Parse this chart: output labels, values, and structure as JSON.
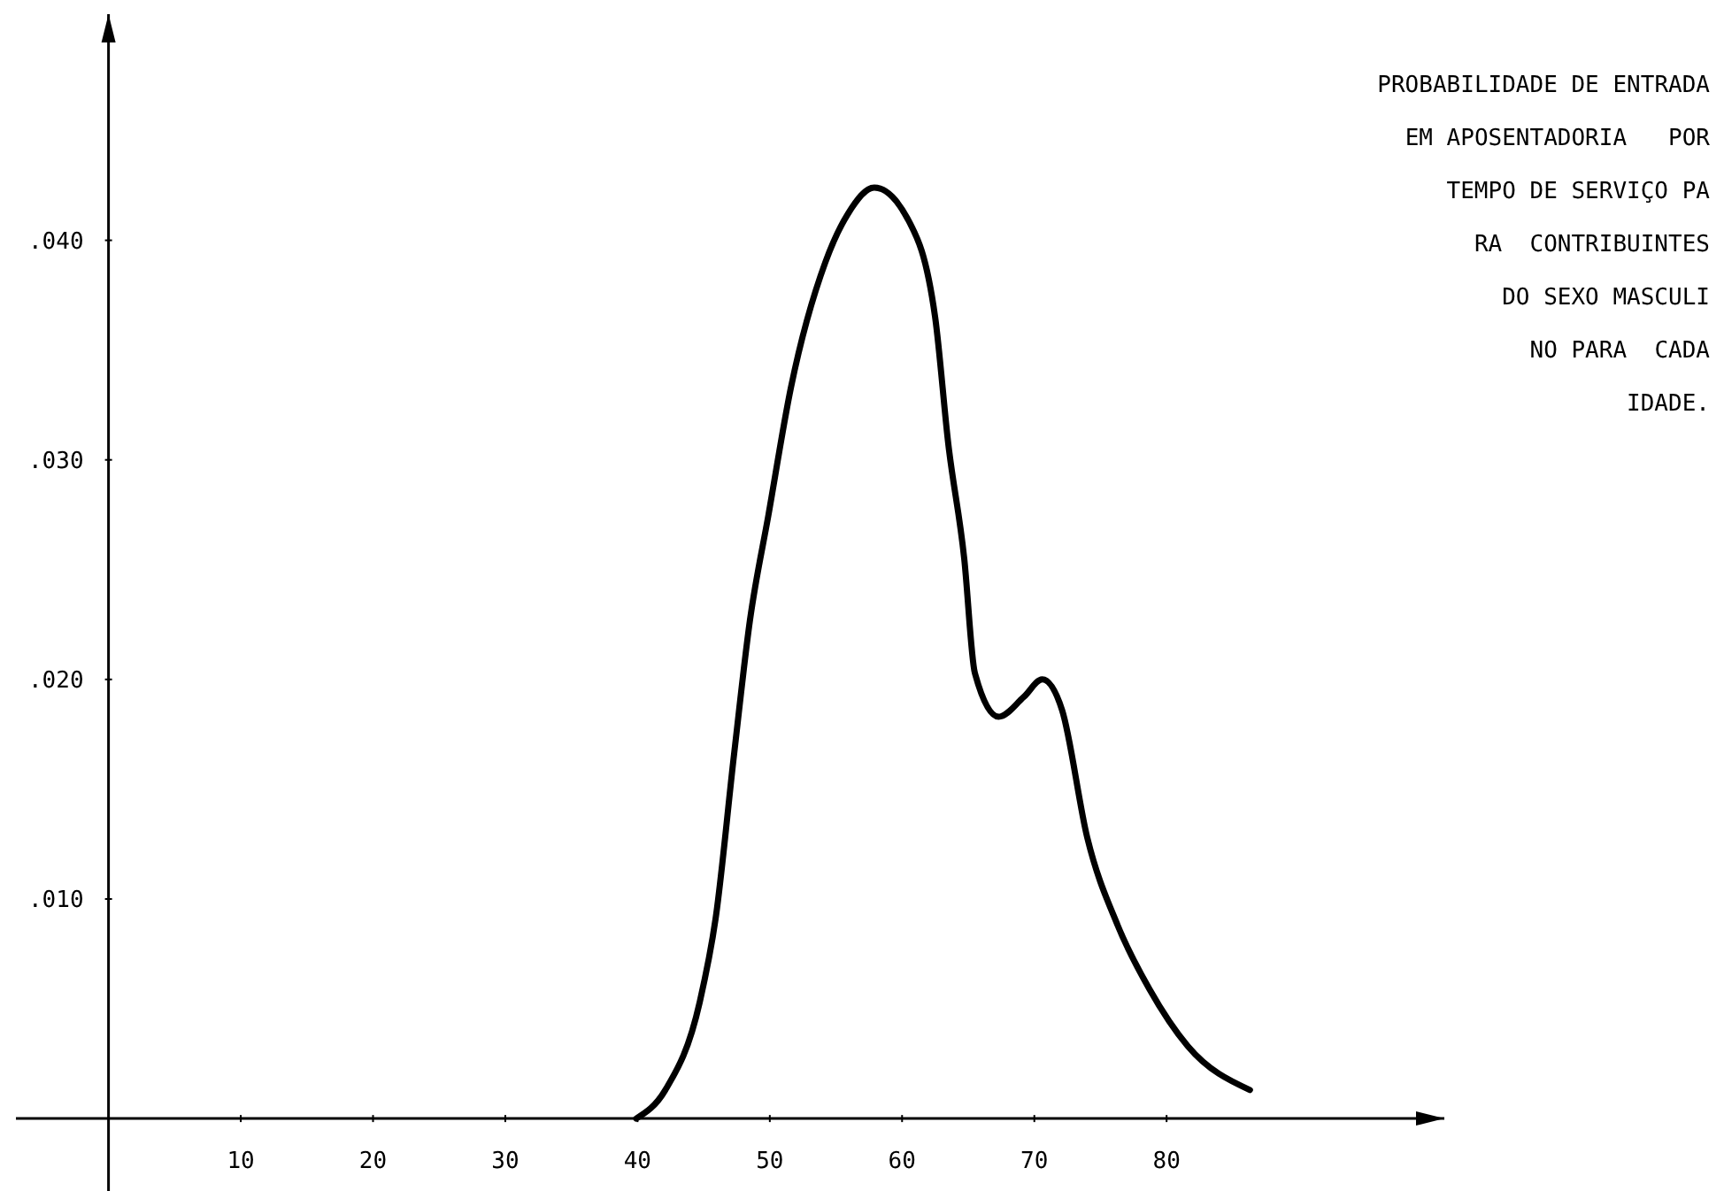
{
  "chart_data": {
    "type": "line",
    "title": "PROBABILIDADE DE ENTRADA\nEM APOSENTADORIA   POR\nTEMPO DE SERVIÇO PA\nRA  CONTRIBUINTES\nDO SEXO MASCULI\nNO PARA  CADA\nIDADE.",
    "x": [
      39.9,
      42.1,
      44.7,
      45.9,
      47.3,
      48.5,
      49.9,
      51.6,
      54.2,
      55.9,
      57.9,
      60.4,
      62.5,
      63.5,
      64.7,
      65.5,
      67.3,
      69.2,
      70.6,
      72.1,
      74.0,
      76.3,
      78.7,
      81.6,
      86.3
    ],
    "series": [
      {
        "color": "#000000",
        "values": [
          0,
          0.0013,
          0.0053,
          0.0091,
          0.0166,
          0.0227,
          0.0275,
          0.0333,
          0.039,
          0.0412,
          0.0424,
          0.041,
          0.0365,
          0.0307,
          0.0255,
          0.0203,
          0.0183,
          0.0192,
          0.02,
          0.0186,
          0.0128,
          0.0088,
          0.0059,
          0.0033,
          0.0013
        ]
      }
    ],
    "xlim": [
      -7,
      101
    ],
    "ylim": [
      -0.0033,
      0.0503
    ],
    "xticks": [
      10,
      20,
      30,
      40,
      50,
      60,
      70,
      80
    ],
    "yticks": [
      {
        "value": 0.01,
        "label": ".010"
      },
      {
        "value": 0.02,
        "label": ".020"
      },
      {
        "value": 0.03,
        "label": ".030"
      },
      {
        "value": 0.04,
        "label": ".040"
      }
    ],
    "grid": false,
    "marker": "none",
    "line_style": "solid"
  }
}
